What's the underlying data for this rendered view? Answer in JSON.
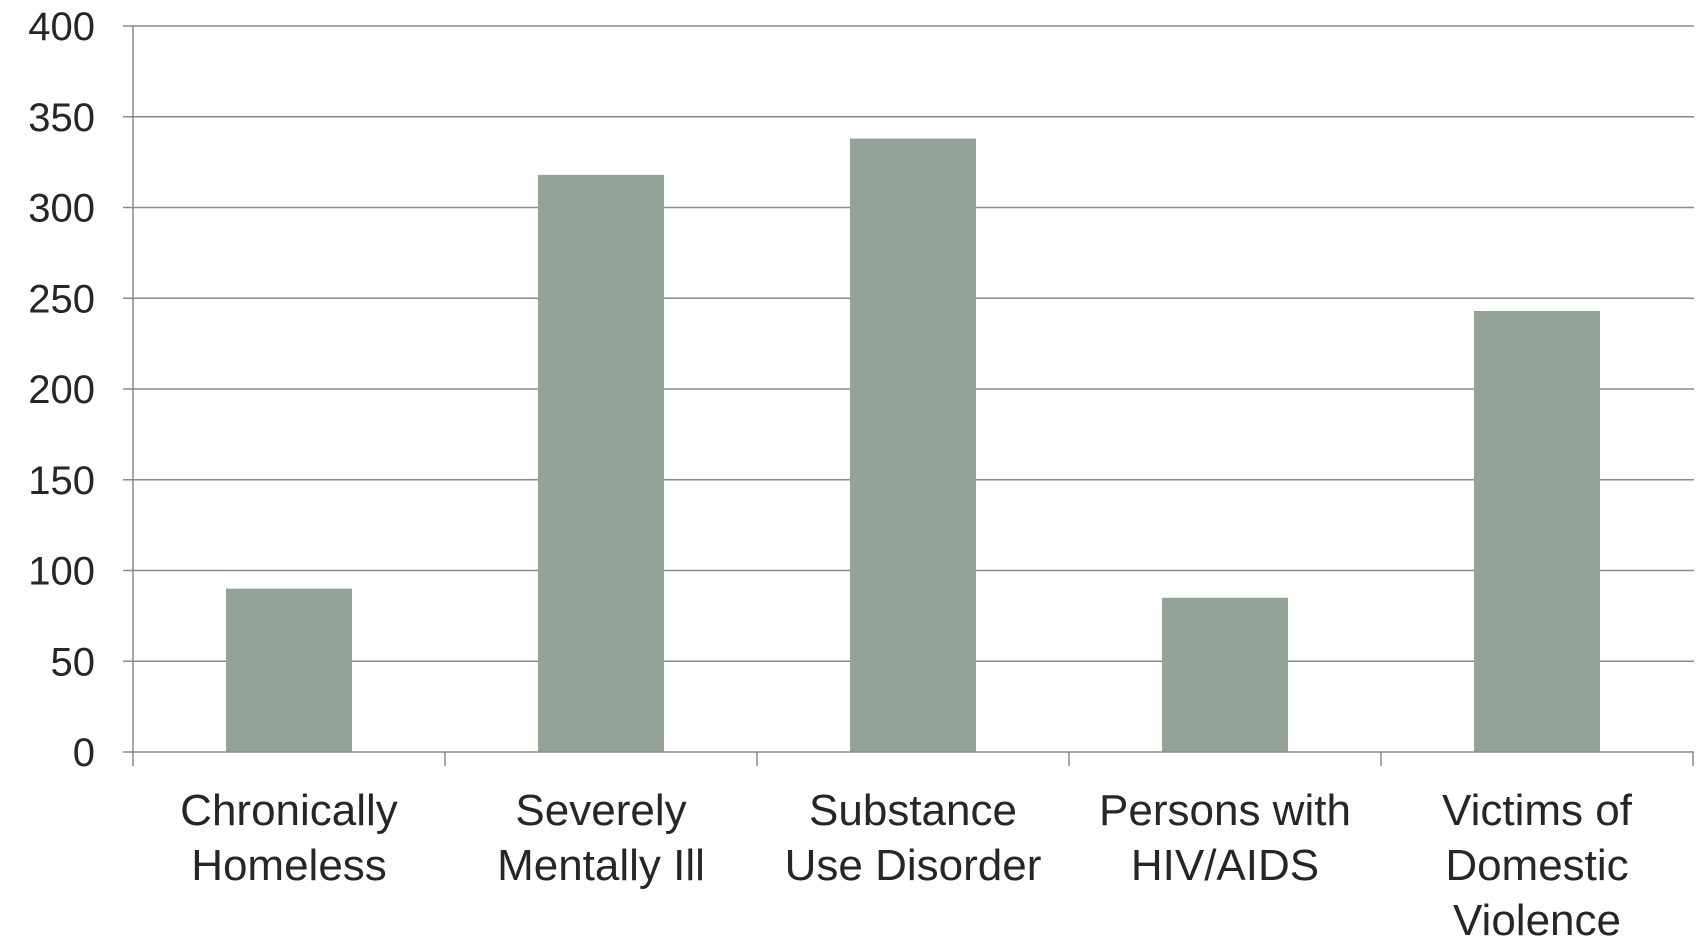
{
  "chart_data": {
    "type": "bar",
    "title": "",
    "xlabel": "",
    "ylabel": "",
    "categories": [
      [
        "Chronically",
        "Homeless"
      ],
      [
        "Severely",
        "Mentally Ill"
      ],
      [
        "Substance",
        "Use Disorder"
      ],
      [
        "Persons with",
        "HIV/AIDS"
      ],
      [
        "Victims of",
        "Domestic",
        "Violence"
      ]
    ],
    "values": [
      90,
      318,
      338,
      85,
      243
    ],
    "ylim": [
      0,
      400
    ],
    "yticks": [
      0,
      50,
      100,
      150,
      200,
      250,
      300,
      350,
      400
    ],
    "grid": true,
    "legend": "none",
    "colors": {
      "bar": "#93a398",
      "grid": "#8a8a8a",
      "text": "#262626"
    }
  }
}
